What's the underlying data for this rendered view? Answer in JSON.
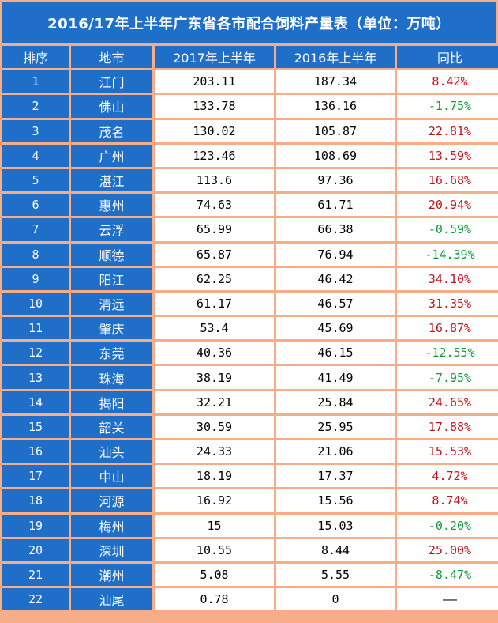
{
  "title": "2016/17年上半年广东省各市配合饲料产量表（单位：万吨）",
  "headers": [
    "排序",
    "地市",
    "2017年上半年",
    "2016年上半年",
    "同比"
  ],
  "rows": [
    {
      "rank": "1",
      "city": "江门",
      "y2017": "203.11",
      "y2016": "187.34",
      "yoy": "8.42%",
      "trend": "pos"
    },
    {
      "rank": "2",
      "city": "佛山",
      "y2017": "133.78",
      "y2016": "136.16",
      "yoy": "-1.75%",
      "trend": "neg"
    },
    {
      "rank": "3",
      "city": "茂名",
      "y2017": "130.02",
      "y2016": "105.87",
      "yoy": "22.81%",
      "trend": "pos"
    },
    {
      "rank": "4",
      "city": "广州",
      "y2017": "123.46",
      "y2016": "108.69",
      "yoy": "13.59%",
      "trend": "pos"
    },
    {
      "rank": "5",
      "city": "湛江",
      "y2017": "113.6",
      "y2016": "97.36",
      "yoy": "16.68%",
      "trend": "pos"
    },
    {
      "rank": "6",
      "city": "惠州",
      "y2017": "74.63",
      "y2016": "61.71",
      "yoy": "20.94%",
      "trend": "pos"
    },
    {
      "rank": "7",
      "city": "云浮",
      "y2017": "65.99",
      "y2016": "66.38",
      "yoy": "-0.59%",
      "trend": "neg"
    },
    {
      "rank": "8",
      "city": "顺德",
      "y2017": "65.87",
      "y2016": "76.94",
      "yoy": "-14.39%",
      "trend": "neg"
    },
    {
      "rank": "9",
      "city": "阳江",
      "y2017": "62.25",
      "y2016": "46.42",
      "yoy": "34.10%",
      "trend": "pos"
    },
    {
      "rank": "10",
      "city": "清远",
      "y2017": "61.17",
      "y2016": "46.57",
      "yoy": "31.35%",
      "trend": "pos"
    },
    {
      "rank": "11",
      "city": "肇庆",
      "y2017": "53.4",
      "y2016": "45.69",
      "yoy": "16.87%",
      "trend": "pos"
    },
    {
      "rank": "12",
      "city": "东莞",
      "y2017": "40.36",
      "y2016": "46.15",
      "yoy": "-12.55%",
      "trend": "neg"
    },
    {
      "rank": "13",
      "city": "珠海",
      "y2017": "38.19",
      "y2016": "41.49",
      "yoy": "-7.95%",
      "trend": "neg"
    },
    {
      "rank": "14",
      "city": "揭阳",
      "y2017": "32.21",
      "y2016": "25.84",
      "yoy": "24.65%",
      "trend": "pos"
    },
    {
      "rank": "15",
      "city": "韶关",
      "y2017": "30.59",
      "y2016": "25.95",
      "yoy": "17.88%",
      "trend": "pos"
    },
    {
      "rank": "16",
      "city": "汕头",
      "y2017": "24.33",
      "y2016": "21.06",
      "yoy": "15.53%",
      "trend": "pos"
    },
    {
      "rank": "17",
      "city": "中山",
      "y2017": "18.19",
      "y2016": "17.37",
      "yoy": "4.72%",
      "trend": "pos"
    },
    {
      "rank": "18",
      "city": "河源",
      "y2017": "16.92",
      "y2016": "15.56",
      "yoy": "8.74%",
      "trend": "pos"
    },
    {
      "rank": "19",
      "city": "梅州",
      "y2017": "15",
      "y2016": "15.03",
      "yoy": "-0.20%",
      "trend": "neg"
    },
    {
      "rank": "20",
      "city": "深圳",
      "y2017": "10.55",
      "y2016": "8.44",
      "yoy": "25.00%",
      "trend": "pos"
    },
    {
      "rank": "21",
      "city": "潮州",
      "y2017": "5.08",
      "y2016": "5.55",
      "yoy": "-8.47%",
      "trend": "neg"
    },
    {
      "rank": "22",
      "city": "汕尾",
      "y2017": "0.78",
      "y2016": "0",
      "yoy": "——",
      "trend": "na"
    }
  ],
  "colors": {
    "header_blue": "#1f6fc9",
    "grid_orange": "#f6ad88",
    "positive_red": "#c0161b",
    "negative_green": "#139a3b"
  }
}
